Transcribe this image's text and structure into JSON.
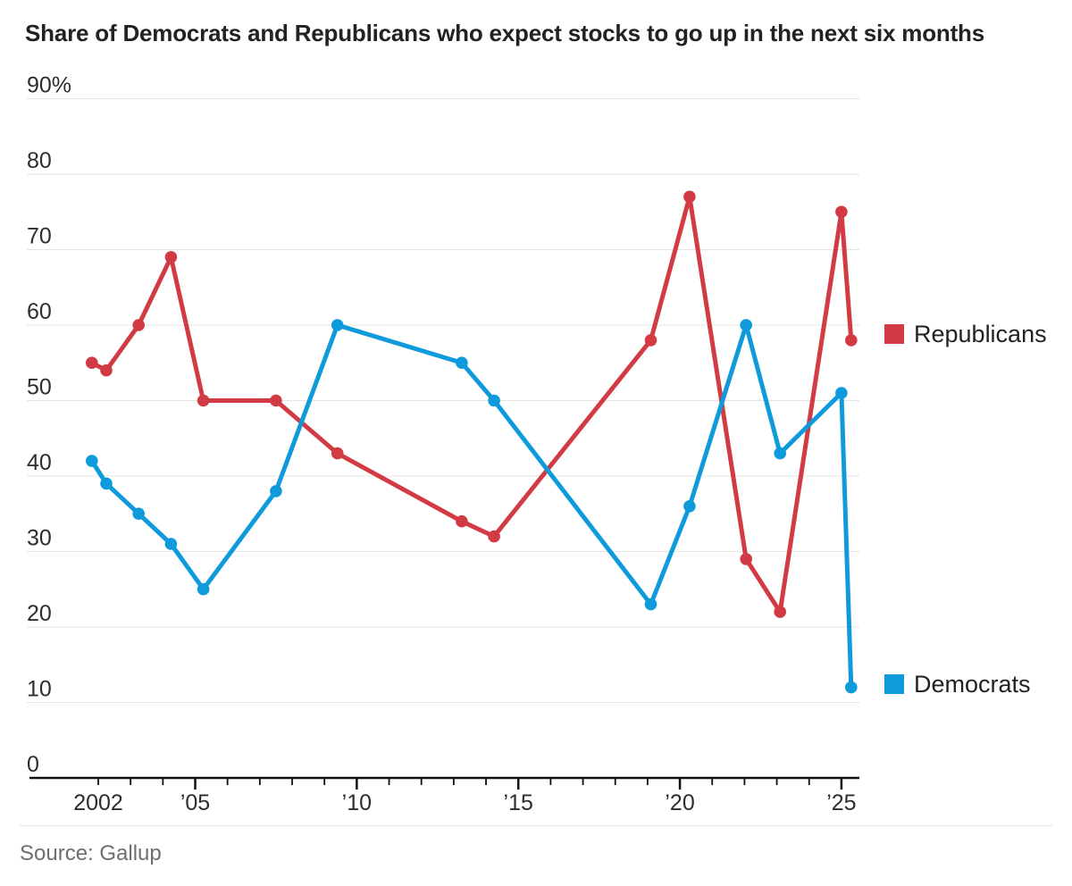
{
  "title": "Share of Democrats and Republicans who expect stocks to go up in the next six months",
  "source": "Source: Gallup",
  "colors": {
    "republicans": "#d23b44",
    "democrats": "#0f9bdb",
    "grid": "#e5e5e5",
    "axis": "#111111",
    "label_text": "#2d2d2d",
    "muted_text": "#6e6e6e"
  },
  "legend": {
    "republicans_label": "Republicans",
    "democrats_label": "Democrats"
  },
  "chart_data": {
    "type": "line",
    "title": "Share of Democrats and Republicans who expect stocks to go up in the next six months",
    "xlabel": "",
    "ylabel": "",
    "ylim": [
      0,
      90
    ],
    "xlim": [
      2001.3,
      2025.8
    ],
    "grid": true,
    "legend_position": "right",
    "x": [
      2001.8,
      2002.25,
      2003.25,
      2004.25,
      2005.25,
      2007.5,
      2009.4,
      2013.25,
      2014.25,
      2019.1,
      2020.3,
      2022.05,
      2023.1,
      2025.0,
      2025.3
    ],
    "series": [
      {
        "name": "Republicans",
        "color": "#d23b44",
        "values": [
          55,
          54,
          60,
          69,
          50,
          50,
          43,
          34,
          32,
          58,
          77,
          29,
          22,
          75,
          58
        ]
      },
      {
        "name": "Democrats",
        "color": "#0f9bdb",
        "values": [
          42,
          39,
          35,
          31,
          25,
          38,
          60,
          55,
          50,
          23,
          36,
          60,
          43,
          51,
          12
        ]
      }
    ],
    "yticks": [
      {
        "value": 90,
        "label": "90%"
      },
      {
        "value": 80,
        "label": "80"
      },
      {
        "value": 70,
        "label": "70"
      },
      {
        "value": 60,
        "label": "60"
      },
      {
        "value": 50,
        "label": "50"
      },
      {
        "value": 40,
        "label": "40"
      },
      {
        "value": 30,
        "label": "30"
      },
      {
        "value": 20,
        "label": "20"
      },
      {
        "value": 10,
        "label": "10"
      },
      {
        "value": 0,
        "label": "0"
      }
    ],
    "xticks_labeled": [
      {
        "year": 2002,
        "label": "2002"
      },
      {
        "year": 2005,
        "label": "’05"
      },
      {
        "year": 2010,
        "label": "’10"
      },
      {
        "year": 2015,
        "label": "’15"
      },
      {
        "year": 2020,
        "label": "’20"
      },
      {
        "year": 2025,
        "label": "’25"
      }
    ],
    "xticks_minor_years": [
      2002,
      2025
    ],
    "major_tick_years": [
      2005,
      2010,
      2015,
      2020,
      2025
    ]
  }
}
